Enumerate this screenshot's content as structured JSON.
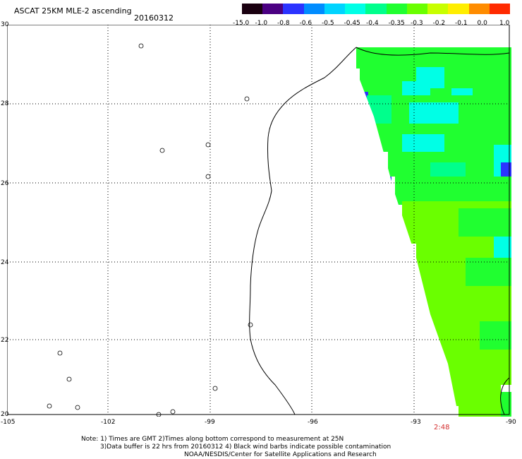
{
  "header": {
    "title": "ASCAT 25KM MLE-2 ascending",
    "date": "20160312"
  },
  "colorbar": {
    "labels": [
      "-15.0",
      "-1.0",
      "-0.8",
      "-0.6",
      "-0.5",
      "-0.45",
      "-0.4",
      "-0.35",
      "-0.3",
      "-0.2",
      "-0.1",
      "0.0",
      "1.0"
    ],
    "colors": [
      "#1a0010",
      "#4b0082",
      "#2b33ff",
      "#008cff",
      "#00d4ff",
      "#00ffe6",
      "#00ff8c",
      "#20ff30",
      "#6aff00",
      "#c8ff00",
      "#ffee00",
      "#ff8c00",
      "#ff2a00"
    ]
  },
  "axes": {
    "lat_labels": [
      "30",
      "28",
      "26",
      "24",
      "22",
      "20"
    ],
    "lon_labels": [
      "-105",
      "-102",
      "-99",
      "-96",
      "-93",
      "-90"
    ]
  },
  "overlay": {
    "time_label": "2:48"
  },
  "notes": {
    "line1": "Note: 1) Times are GMT 2)Times along bottom correspond to measurement at 25N",
    "line2": "3)Data buffer is 22 hrs from 20160312 4) Black wind barbs indicate possible contamination",
    "line3": "NOAA/NESDIS/Center for Satellite Applications and Research"
  }
}
